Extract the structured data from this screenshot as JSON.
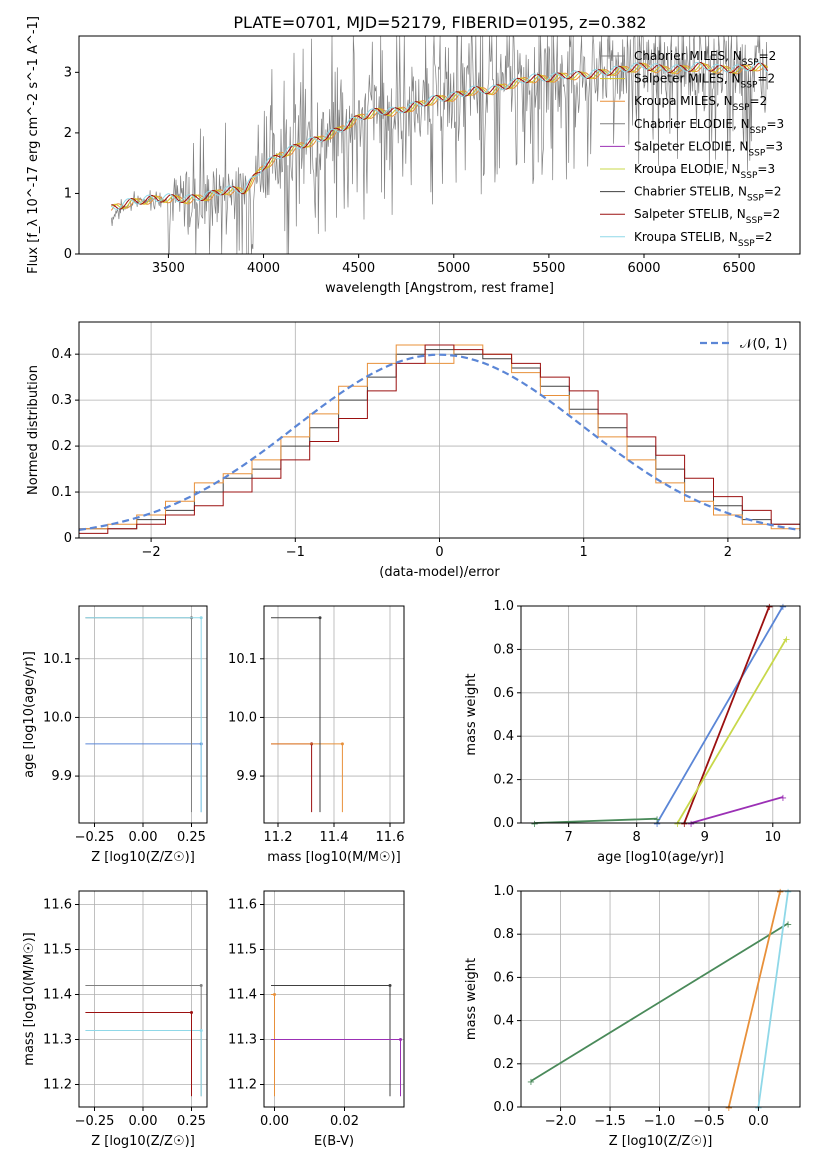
{
  "title": "PLATE=0701, MJD=52179, FIBERID=0195, z=0.382",
  "colors": {
    "chabrier_miles": "#808080",
    "salpeter_miles": "#d4c320",
    "kroupa_miles": "#e8903a",
    "chabrier_elodie": "#808080",
    "salpeter_elodie": "#9b30b5",
    "kroupa_elodie": "#c8d84a",
    "chabrier_stelib": "#404040",
    "salpeter_stelib": "#9b1010",
    "kroupa_stelib": "#8fd8e8",
    "gauss": "#5b86d6"
  },
  "chart_data": [
    {
      "type": "line",
      "title": "PLATE=0701, MJD=52179, FIBERID=0195, z=0.382",
      "xlabel": "wavelength [Angstrom, rest frame]",
      "ylabel": "Flux [f_λ 10^-17 erg cm^-2 s^-1 A^-1]",
      "xlim": [
        3030,
        6820
      ],
      "ylim": [
        0,
        3.6
      ],
      "xticks": [
        3500,
        4000,
        4500,
        5000,
        5500,
        6000,
        6500
      ],
      "yticks": [
        0,
        1,
        2,
        3
      ],
      "grid": false,
      "legend": "top-right",
      "legend_entries": [
        "Chabrier MILES, N_SSP=2",
        "Salpeter MILES, N_SSP=2",
        "Kroupa MILES, N_SSP=2",
        "Chabrier ELODIE, N_SSP=3",
        "Salpeter ELODIE, N_SSP=3",
        "Kroupa ELODIE, N_SSP=3",
        "Chabrier STELIB, N_SSP=2",
        "Salpeter STELIB, N_SSP=2",
        "Kroupa STELIB, N_SSP=2"
      ],
      "series": [
        {
          "name": "data",
          "x": [
            3200,
            3300,
            3400,
            3500,
            3600,
            3700,
            3800,
            3900,
            4000,
            4100,
            4200,
            4300,
            4400,
            4500,
            4600,
            4700,
            4800,
            4900,
            5000,
            5100,
            5200,
            5300,
            5400,
            5500,
            5600,
            5700,
            5800,
            5900,
            6000,
            6100,
            6200,
            6300,
            6400,
            6500,
            6600,
            6650
          ],
          "y": [
            0.6,
            0.85,
            0.9,
            0.9,
            0.85,
            0.95,
            1.05,
            1.0,
            1.45,
            1.65,
            1.8,
            1.85,
            2.05,
            2.2,
            2.35,
            2.3,
            2.45,
            2.55,
            2.55,
            2.7,
            2.65,
            2.8,
            2.9,
            2.85,
            2.95,
            2.9,
            3.0,
            3.05,
            3.1,
            3.05,
            3.0,
            3.1,
            3.0,
            3.05,
            3.1,
            3.0
          ]
        },
        {
          "name": "model",
          "x": [
            3200,
            3300,
            3400,
            3500,
            3600,
            3700,
            3800,
            3900,
            4000,
            4100,
            4200,
            4300,
            4400,
            4500,
            4600,
            4700,
            4800,
            4900,
            5000,
            5100,
            5200,
            5300,
            5400,
            5500,
            5600,
            5700,
            5800,
            5900,
            6000,
            6100,
            6200,
            6300,
            6400,
            6500,
            6600,
            6650
          ],
          "y": [
            0.75,
            0.85,
            0.9,
            0.92,
            0.9,
            0.95,
            1.05,
            1.05,
            1.45,
            1.65,
            1.8,
            1.9,
            2.05,
            2.25,
            2.35,
            2.35,
            2.45,
            2.55,
            2.6,
            2.7,
            2.7,
            2.8,
            2.9,
            2.9,
            2.95,
            2.95,
            3.0,
            3.05,
            3.1,
            3.05,
            3.05,
            3.1,
            3.05,
            3.05,
            3.1,
            3.05
          ]
        }
      ]
    },
    {
      "type": "line",
      "xlabel": "(data-model)/error",
      "ylabel": "Normed distribution",
      "xlim": [
        -2.5,
        2.5
      ],
      "ylim": [
        0,
        0.47
      ],
      "xticks": [
        -2,
        -1,
        0,
        1,
        2
      ],
      "yticks": [
        0.0,
        0.1,
        0.2,
        0.3,
        0.4
      ],
      "grid": true,
      "legend": "top-right",
      "legend_entries": [
        "𝒩(0, 1)"
      ],
      "bins": [
        -2.4,
        -2.2,
        -2.0,
        -1.8,
        -1.6,
        -1.4,
        -1.2,
        -1.0,
        -0.8,
        -0.6,
        -0.4,
        -0.2,
        0.0,
        0.2,
        0.4,
        0.6,
        0.8,
        1.0,
        1.2,
        1.4,
        1.6,
        1.8,
        2.0,
        2.2,
        2.4
      ],
      "series": [
        {
          "name": "",
          "values": [
            0.02,
            0.02,
            0.04,
            0.06,
            0.1,
            0.13,
            0.15,
            0.2,
            0.24,
            0.3,
            0.35,
            0.4,
            0.41,
            0.4,
            0.39,
            0.37,
            0.33,
            0.28,
            0.24,
            0.2,
            0.15,
            0.1,
            0.07,
            0.04,
            0.03
          ]
        },
        {
          "name": "",
          "values": [
            0.02,
            0.03,
            0.05,
            0.08,
            0.12,
            0.14,
            0.17,
            0.22,
            0.27,
            0.33,
            0.38,
            0.42,
            0.38,
            0.42,
            0.4,
            0.36,
            0.31,
            0.27,
            0.22,
            0.17,
            0.12,
            0.08,
            0.05,
            0.03,
            0.02
          ]
        },
        {
          "name": "",
          "values": [
            0.01,
            0.02,
            0.03,
            0.05,
            0.07,
            0.1,
            0.13,
            0.17,
            0.21,
            0.26,
            0.32,
            0.38,
            0.42,
            0.41,
            0.4,
            0.38,
            0.35,
            0.32,
            0.27,
            0.22,
            0.18,
            0.13,
            0.09,
            0.06,
            0.03
          ]
        }
      ],
      "gaussian": {
        "name": "𝒩(0, 1)",
        "mean": 0,
        "sigma": 1
      }
    },
    {
      "type": "scatter",
      "xlabel": "Z [log10(Z/Z☉)]",
      "ylabel": "age  [log10(age/yr)]",
      "xlim": [
        -0.33,
        0.33
      ],
      "ylim": [
        9.82,
        10.19
      ],
      "xticks": [
        -0.25,
        0.0,
        0.25
      ],
      "yticks": [
        9.9,
        10.0,
        10.1
      ],
      "grid": true,
      "points": [
        {
          "x": 0.3,
          "y": 9.955
        },
        {
          "x": 0.25,
          "y": 10.17
        },
        {
          "x": 0.3,
          "y": 10.17
        }
      ]
    },
    {
      "type": "scatter",
      "xlabel": "mass [log10(M/M☉)]",
      "ylabel": "",
      "xlim": [
        11.15,
        11.65
      ],
      "ylim": [
        9.82,
        10.19
      ],
      "xticks": [
        11.2,
        11.4,
        11.6
      ],
      "yticks": [
        9.9,
        10.0,
        10.1
      ],
      "grid": true,
      "points": [
        {
          "x": 11.32,
          "y": 9.955
        },
        {
          "x": 11.43,
          "y": 9.955
        },
        {
          "x": 11.35,
          "y": 10.17
        }
      ]
    },
    {
      "type": "line",
      "xlabel": "age  [log10(age/yr)]",
      "ylabel": "mass weight",
      "xlim": [
        6.3,
        10.4
      ],
      "ylim": [
        0,
        1.0
      ],
      "xticks": [
        7,
        8,
        9,
        10
      ],
      "yticks": [
        0.0,
        0.2,
        0.4,
        0.6,
        0.8,
        1.0
      ],
      "grid": true,
      "series": [
        {
          "name": "",
          "x": [
            8.3,
            10.15
          ],
          "y": [
            0.0,
            1.0
          ]
        },
        {
          "name": "",
          "x": [
            8.7,
            9.95
          ],
          "y": [
            0.0,
            1.0
          ]
        },
        {
          "name": "",
          "x": [
            8.6,
            10.2
          ],
          "y": [
            0.0,
            0.85
          ]
        },
        {
          "name": "",
          "x": [
            8.8,
            10.15
          ],
          "y": [
            0.0,
            0.12
          ]
        },
        {
          "name": "",
          "x": [
            6.5,
            8.3
          ],
          "y": [
            0.0,
            0.02
          ]
        }
      ]
    },
    {
      "type": "scatter",
      "xlabel": "Z [log10(Z/Z☉)]",
      "ylabel": "mass [log10(M/M☉)]",
      "xlim": [
        -0.33,
        0.33
      ],
      "ylim": [
        11.15,
        11.63
      ],
      "xticks": [
        -0.25,
        0.0,
        0.25
      ],
      "yticks": [
        11.2,
        11.3,
        11.4,
        11.5,
        11.6
      ],
      "grid": true,
      "points": [
        {
          "x": 0.3,
          "y": 11.42
        },
        {
          "x": 0.3,
          "y": 11.32
        },
        {
          "x": 0.25,
          "y": 11.36
        }
      ]
    },
    {
      "type": "scatter",
      "xlabel": "E(B-V)",
      "ylabel": "",
      "xlim": [
        -0.003,
        0.037
      ],
      "ylim": [
        11.15,
        11.63
      ],
      "xticks": [
        0.0,
        0.02
      ],
      "yticks": [
        11.2,
        11.3,
        11.4,
        11.5,
        11.6
      ],
      "grid": true,
      "points": [
        {
          "x": 0.0,
          "y": 11.4
        },
        {
          "x": 0.033,
          "y": 11.42
        },
        {
          "x": 0.036,
          "y": 11.3
        }
      ]
    },
    {
      "type": "line",
      "xlabel": "Z [log10(Z/Z☉)]",
      "ylabel": "mass weight",
      "xlim": [
        -2.4,
        0.42
      ],
      "ylim": [
        0,
        1.0
      ],
      "xticks": [
        -2.0,
        -1.5,
        -1.0,
        -0.5,
        0.0
      ],
      "yticks": [
        0.0,
        0.2,
        0.4,
        0.6,
        0.8,
        1.0
      ],
      "grid": true,
      "series": [
        {
          "name": "",
          "x": [
            -2.3,
            0.3
          ],
          "y": [
            0.12,
            0.85
          ]
        },
        {
          "name": "",
          "x": [
            -0.3,
            0.22
          ],
          "y": [
            0.0,
            1.0
          ]
        },
        {
          "name": "",
          "x": [
            0.0,
            0.3
          ],
          "y": [
            0.0,
            1.0
          ]
        }
      ]
    }
  ]
}
